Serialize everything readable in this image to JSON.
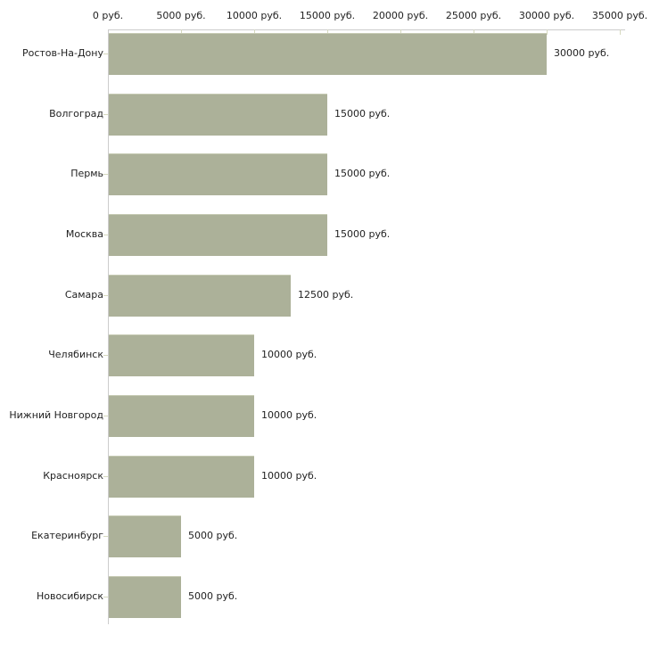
{
  "chart_data": {
    "type": "bar",
    "orientation": "horizontal",
    "categories": [
      "Ростов-На-Дону",
      "Волгоград",
      "Пермь",
      "Москва",
      "Самара",
      "Челябинск",
      "Нижний Новгород",
      "Красноярск",
      "Екатеринбург",
      "Новосибирск"
    ],
    "values": [
      30000,
      15000,
      15000,
      15000,
      12500,
      10000,
      10000,
      10000,
      5000,
      5000
    ],
    "value_labels": [
      "30000 руб.",
      "15000 руб.",
      "15000 руб.",
      "15000 руб.",
      "12500 руб.",
      "10000 руб.",
      "10000 руб.",
      "10000 руб.",
      "5000 руб.",
      "5000 руб."
    ],
    "x_axis": {
      "position": "top",
      "min": 0,
      "max": 35000,
      "tick_step": 5000,
      "tick_labels": [
        "0 руб.",
        "5000 руб.",
        "10000 руб.",
        "15000 руб.",
        "20000 руб.",
        "25000 руб.",
        "30000 руб.",
        "35000 руб."
      ]
    },
    "grid": "off",
    "legend": "none",
    "colors": {
      "bar": "#acb199",
      "bar_top_edge": "#c6cab3",
      "axis_line": "#cccccc",
      "tick": "#d6d9bf",
      "text": "#222222",
      "background": "#ffffff"
    }
  }
}
